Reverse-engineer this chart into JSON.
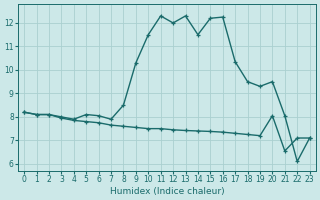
{
  "xlabel": "Humidex (Indice chaleur)",
  "xlim": [
    -0.5,
    23.5
  ],
  "ylim": [
    5.7,
    12.8
  ],
  "yticks": [
    6,
    7,
    8,
    9,
    10,
    11,
    12
  ],
  "xticks": [
    0,
    1,
    2,
    3,
    4,
    5,
    6,
    7,
    8,
    9,
    10,
    11,
    12,
    13,
    14,
    15,
    16,
    17,
    18,
    19,
    20,
    21,
    22,
    23
  ],
  "background_color": "#cce8e8",
  "grid_color": "#aad0d0",
  "line_color": "#1a6b6b",
  "line1_x": [
    0,
    1,
    2,
    3,
    4,
    5,
    6,
    7,
    8,
    9,
    10,
    11,
    12,
    13,
    14,
    15,
    16,
    17,
    18,
    19,
    20,
    21,
    22,
    23
  ],
  "line1_y": [
    8.2,
    8.1,
    8.1,
    8.0,
    7.9,
    8.1,
    8.05,
    7.9,
    8.5,
    10.3,
    11.5,
    12.3,
    12.0,
    12.3,
    11.5,
    12.2,
    12.25,
    10.35,
    9.5,
    9.3,
    9.5,
    8.05,
    6.1,
    7.1
  ],
  "line2_x": [
    0,
    1,
    2,
    3,
    4,
    5,
    6,
    7,
    8,
    9,
    10,
    11,
    12,
    13,
    14,
    15,
    16,
    17,
    18,
    19,
    20,
    21,
    22,
    23
  ],
  "line2_y": [
    8.2,
    8.1,
    8.1,
    7.95,
    7.85,
    7.8,
    7.75,
    7.65,
    7.6,
    7.55,
    7.5,
    7.5,
    7.45,
    7.42,
    7.4,
    7.38,
    7.35,
    7.3,
    7.25,
    7.2,
    8.05,
    6.55,
    7.1,
    7.1
  ],
  "marker": "+",
  "markersize": 3,
  "linewidth": 1.0
}
